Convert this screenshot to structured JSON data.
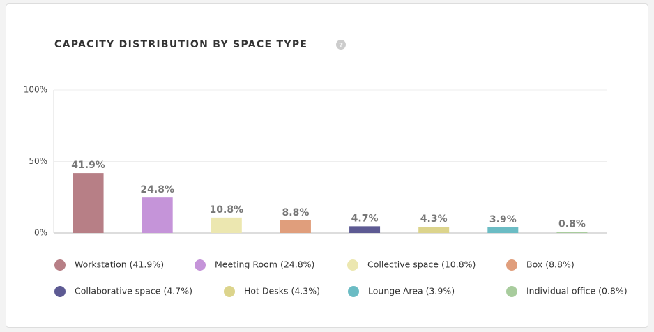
{
  "chart_data": {
    "type": "bar",
    "title": "CAPACITY DISTRIBUTION BY SPACE TYPE",
    "categories": [
      "Workstation (41.9%)",
      "Meeting Room (24.8%)",
      "Collective space (10.8%)",
      "Box (8.8%)",
      "Collaborative space (4.7%)",
      "Hot Desks (4.3%)",
      "Lounge Area (3.9%)",
      "Individual office (0.8%)"
    ],
    "values": [
      41.9,
      24.8,
      10.8,
      8.8,
      4.7,
      4.3,
      3.9,
      0.8
    ],
    "value_labels": [
      "41.9%",
      "24.8%",
      "10.8%",
      "8.8%",
      "4.7%",
      "4.3%",
      "3.9%",
      "0.8%"
    ],
    "colors": [
      "#b77f86",
      "#c594d9",
      "#ece7b0",
      "#e09e7c",
      "#5d5a93",
      "#dcd48c",
      "#6bbcc4",
      "#a8cc9d"
    ],
    "ylim": [
      0,
      100
    ],
    "yticks": [
      {
        "value": 0,
        "label": "0%"
      },
      {
        "value": 50,
        "label": "50%"
      },
      {
        "value": 100,
        "label": "100%"
      }
    ],
    "grid": true
  }
}
